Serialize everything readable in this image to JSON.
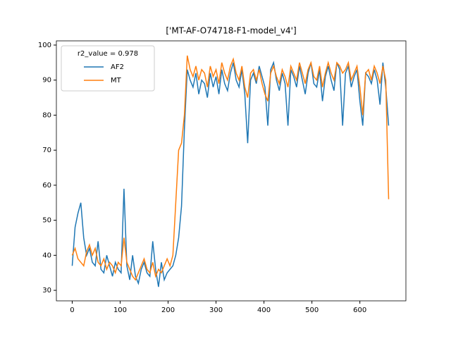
{
  "chart_data": {
    "type": "line",
    "title": "['MT-AF-O74718-F1-model_v4']",
    "legend_title": "r2_value = 0.978",
    "legend": "upper left",
    "x": [
      0,
      6,
      12,
      18,
      24,
      30,
      36,
      42,
      48,
      54,
      60,
      66,
      72,
      78,
      84,
      90,
      96,
      102,
      108,
      114,
      120,
      126,
      132,
      138,
      144,
      150,
      156,
      162,
      168,
      174,
      180,
      186,
      192,
      198,
      204,
      210,
      216,
      222,
      228,
      234,
      240,
      246,
      252,
      258,
      264,
      270,
      276,
      282,
      288,
      294,
      300,
      306,
      312,
      318,
      324,
      330,
      336,
      342,
      348,
      354,
      360,
      366,
      372,
      378,
      384,
      390,
      396,
      402,
      408,
      414,
      420,
      426,
      432,
      438,
      444,
      450,
      456,
      462,
      468,
      474,
      480,
      486,
      492,
      498,
      504,
      510,
      516,
      522,
      528,
      534,
      540,
      546,
      552,
      558,
      564,
      570,
      576,
      582,
      588,
      594,
      600,
      606,
      612,
      618,
      624,
      630,
      636,
      642,
      648,
      654,
      660
    ],
    "series": [
      {
        "name": "AF2",
        "color": "#1f77b4",
        "values": [
          37,
          48,
          52,
          55,
          45,
          40,
          42,
          38,
          37,
          44,
          36,
          35,
          40,
          37,
          34,
          38,
          36,
          35,
          59,
          37,
          33,
          40,
          34,
          32,
          36,
          38,
          35,
          34,
          44,
          36,
          31,
          38,
          33,
          35,
          36,
          37,
          40,
          45,
          54,
          76,
          93,
          90,
          88,
          92,
          86,
          90,
          89,
          85,
          92,
          88,
          91,
          86,
          93,
          89,
          87,
          92,
          95,
          90,
          88,
          93,
          86,
          72,
          90,
          92,
          89,
          94,
          91,
          88,
          77,
          93,
          95,
          90,
          87,
          92,
          89,
          77,
          93,
          91,
          88,
          94,
          90,
          86,
          92,
          95,
          89,
          88,
          93,
          84,
          91,
          94,
          90,
          87,
          95,
          93,
          77,
          92,
          94,
          88,
          91,
          93,
          84,
          77,
          92,
          91,
          89,
          93,
          90,
          83,
          95,
          88,
          77
        ]
      },
      {
        "name": "MT",
        "color": "#ff7f0e",
        "values": [
          40,
          42,
          39,
          38,
          37,
          41,
          43,
          40,
          42,
          38,
          37,
          39,
          36,
          38,
          37,
          35,
          38,
          37,
          45,
          38,
          36,
          34,
          33,
          35,
          37,
          39,
          36,
          35,
          38,
          34,
          36,
          35,
          37,
          39,
          37,
          40,
          55,
          70,
          72,
          80,
          97,
          93,
          91,
          94,
          90,
          93,
          92,
          88,
          94,
          91,
          93,
          89,
          95,
          92,
          90,
          94,
          96,
          92,
          90,
          94,
          88,
          85,
          92,
          93,
          90,
          93,
          89,
          86,
          84,
          92,
          94,
          91,
          89,
          93,
          91,
          88,
          94,
          92,
          90,
          95,
          92,
          89,
          93,
          95,
          91,
          90,
          94,
          88,
          92,
          95,
          92,
          90,
          95,
          94,
          92,
          93,
          95,
          90,
          92,
          94,
          88,
          80,
          92,
          93,
          90,
          94,
          92,
          89,
          94,
          90,
          56
        ]
      }
    ],
    "xlim": [
      -33,
      696
    ],
    "ylim": [
      27,
      101.2
    ],
    "xticks": [
      0,
      100,
      200,
      300,
      400,
      500,
      600
    ],
    "yticks": [
      30,
      40,
      50,
      60,
      70,
      80,
      90,
      100
    ]
  }
}
